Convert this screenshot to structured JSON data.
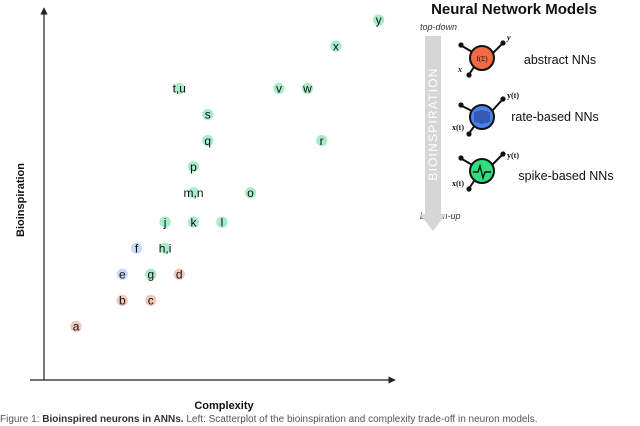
{
  "chart_data": {
    "type": "scatter",
    "xlabel": "Complexity",
    "ylabel": "Bioinspiration",
    "xlim": [
      0,
      100
    ],
    "ylim": [
      0,
      100
    ],
    "grid": false,
    "category_colors": {
      "red": "#f3c6bb",
      "blue": "#c9d9f5",
      "green": "#a8ecc9"
    },
    "points": [
      {
        "label": "a",
        "x": 9,
        "y": 6,
        "color": "red"
      },
      {
        "label": "b",
        "x": 22,
        "y": 14,
        "color": "red"
      },
      {
        "label": "c",
        "x": 30,
        "y": 14,
        "color": "red"
      },
      {
        "label": "d",
        "x": 38,
        "y": 22,
        "color": "red"
      },
      {
        "label": "e",
        "x": 22,
        "y": 22,
        "color": "blue"
      },
      {
        "label": "f",
        "x": 26,
        "y": 30,
        "color": "blue"
      },
      {
        "label": "g",
        "x": 30,
        "y": 22,
        "color": "green"
      },
      {
        "label": "h,i",
        "x": 34,
        "y": 30,
        "color": "green"
      },
      {
        "label": "j",
        "x": 34,
        "y": 38,
        "color": "green"
      },
      {
        "label": "k",
        "x": 42,
        "y": 38,
        "color": "green"
      },
      {
        "label": "l",
        "x": 50,
        "y": 38,
        "color": "green"
      },
      {
        "label": "m,n",
        "x": 42,
        "y": 47,
        "color": "green"
      },
      {
        "label": "o",
        "x": 58,
        "y": 47,
        "color": "green"
      },
      {
        "label": "p",
        "x": 42,
        "y": 55,
        "color": "green"
      },
      {
        "label": "q",
        "x": 46,
        "y": 63,
        "color": "green"
      },
      {
        "label": "r",
        "x": 78,
        "y": 63,
        "color": "green"
      },
      {
        "label": "s",
        "x": 46,
        "y": 71,
        "color": "green"
      },
      {
        "label": "t,u",
        "x": 38,
        "y": 79,
        "color": "green"
      },
      {
        "label": "v",
        "x": 66,
        "y": 79,
        "color": "green"
      },
      {
        "label": "w",
        "x": 74,
        "y": 79,
        "color": "green"
      },
      {
        "label": "x",
        "x": 82,
        "y": 92,
        "color": "green"
      },
      {
        "label": "y",
        "x": 94,
        "y": 100,
        "color": "green"
      }
    ]
  },
  "legend": {
    "title": "Neural Network Models",
    "top_note": "top-down",
    "bottom_note": "bottom-up",
    "arrow_label": "BIOINSPIRATION",
    "models": [
      {
        "name": "abstract NNs",
        "fill": "#f26a43",
        "core": "f(Σ)",
        "input": "x",
        "output": "y"
      },
      {
        "name": "rate-based NNs",
        "fill": "#4a83f0",
        "core": "",
        "input": "x(t)",
        "output": "y(t)"
      },
      {
        "name": "spike-based NNs",
        "fill": "#2ee07f",
        "core": "",
        "input": "x(t)",
        "output": "y(t)"
      }
    ]
  },
  "caption": {
    "prefix": "Figure 1: ",
    "bold": "Bioinspired neurons in ANNs.",
    "rest": " Left: Scatterplot of the bioinspiration and complexity trade-off in neuron models."
  }
}
